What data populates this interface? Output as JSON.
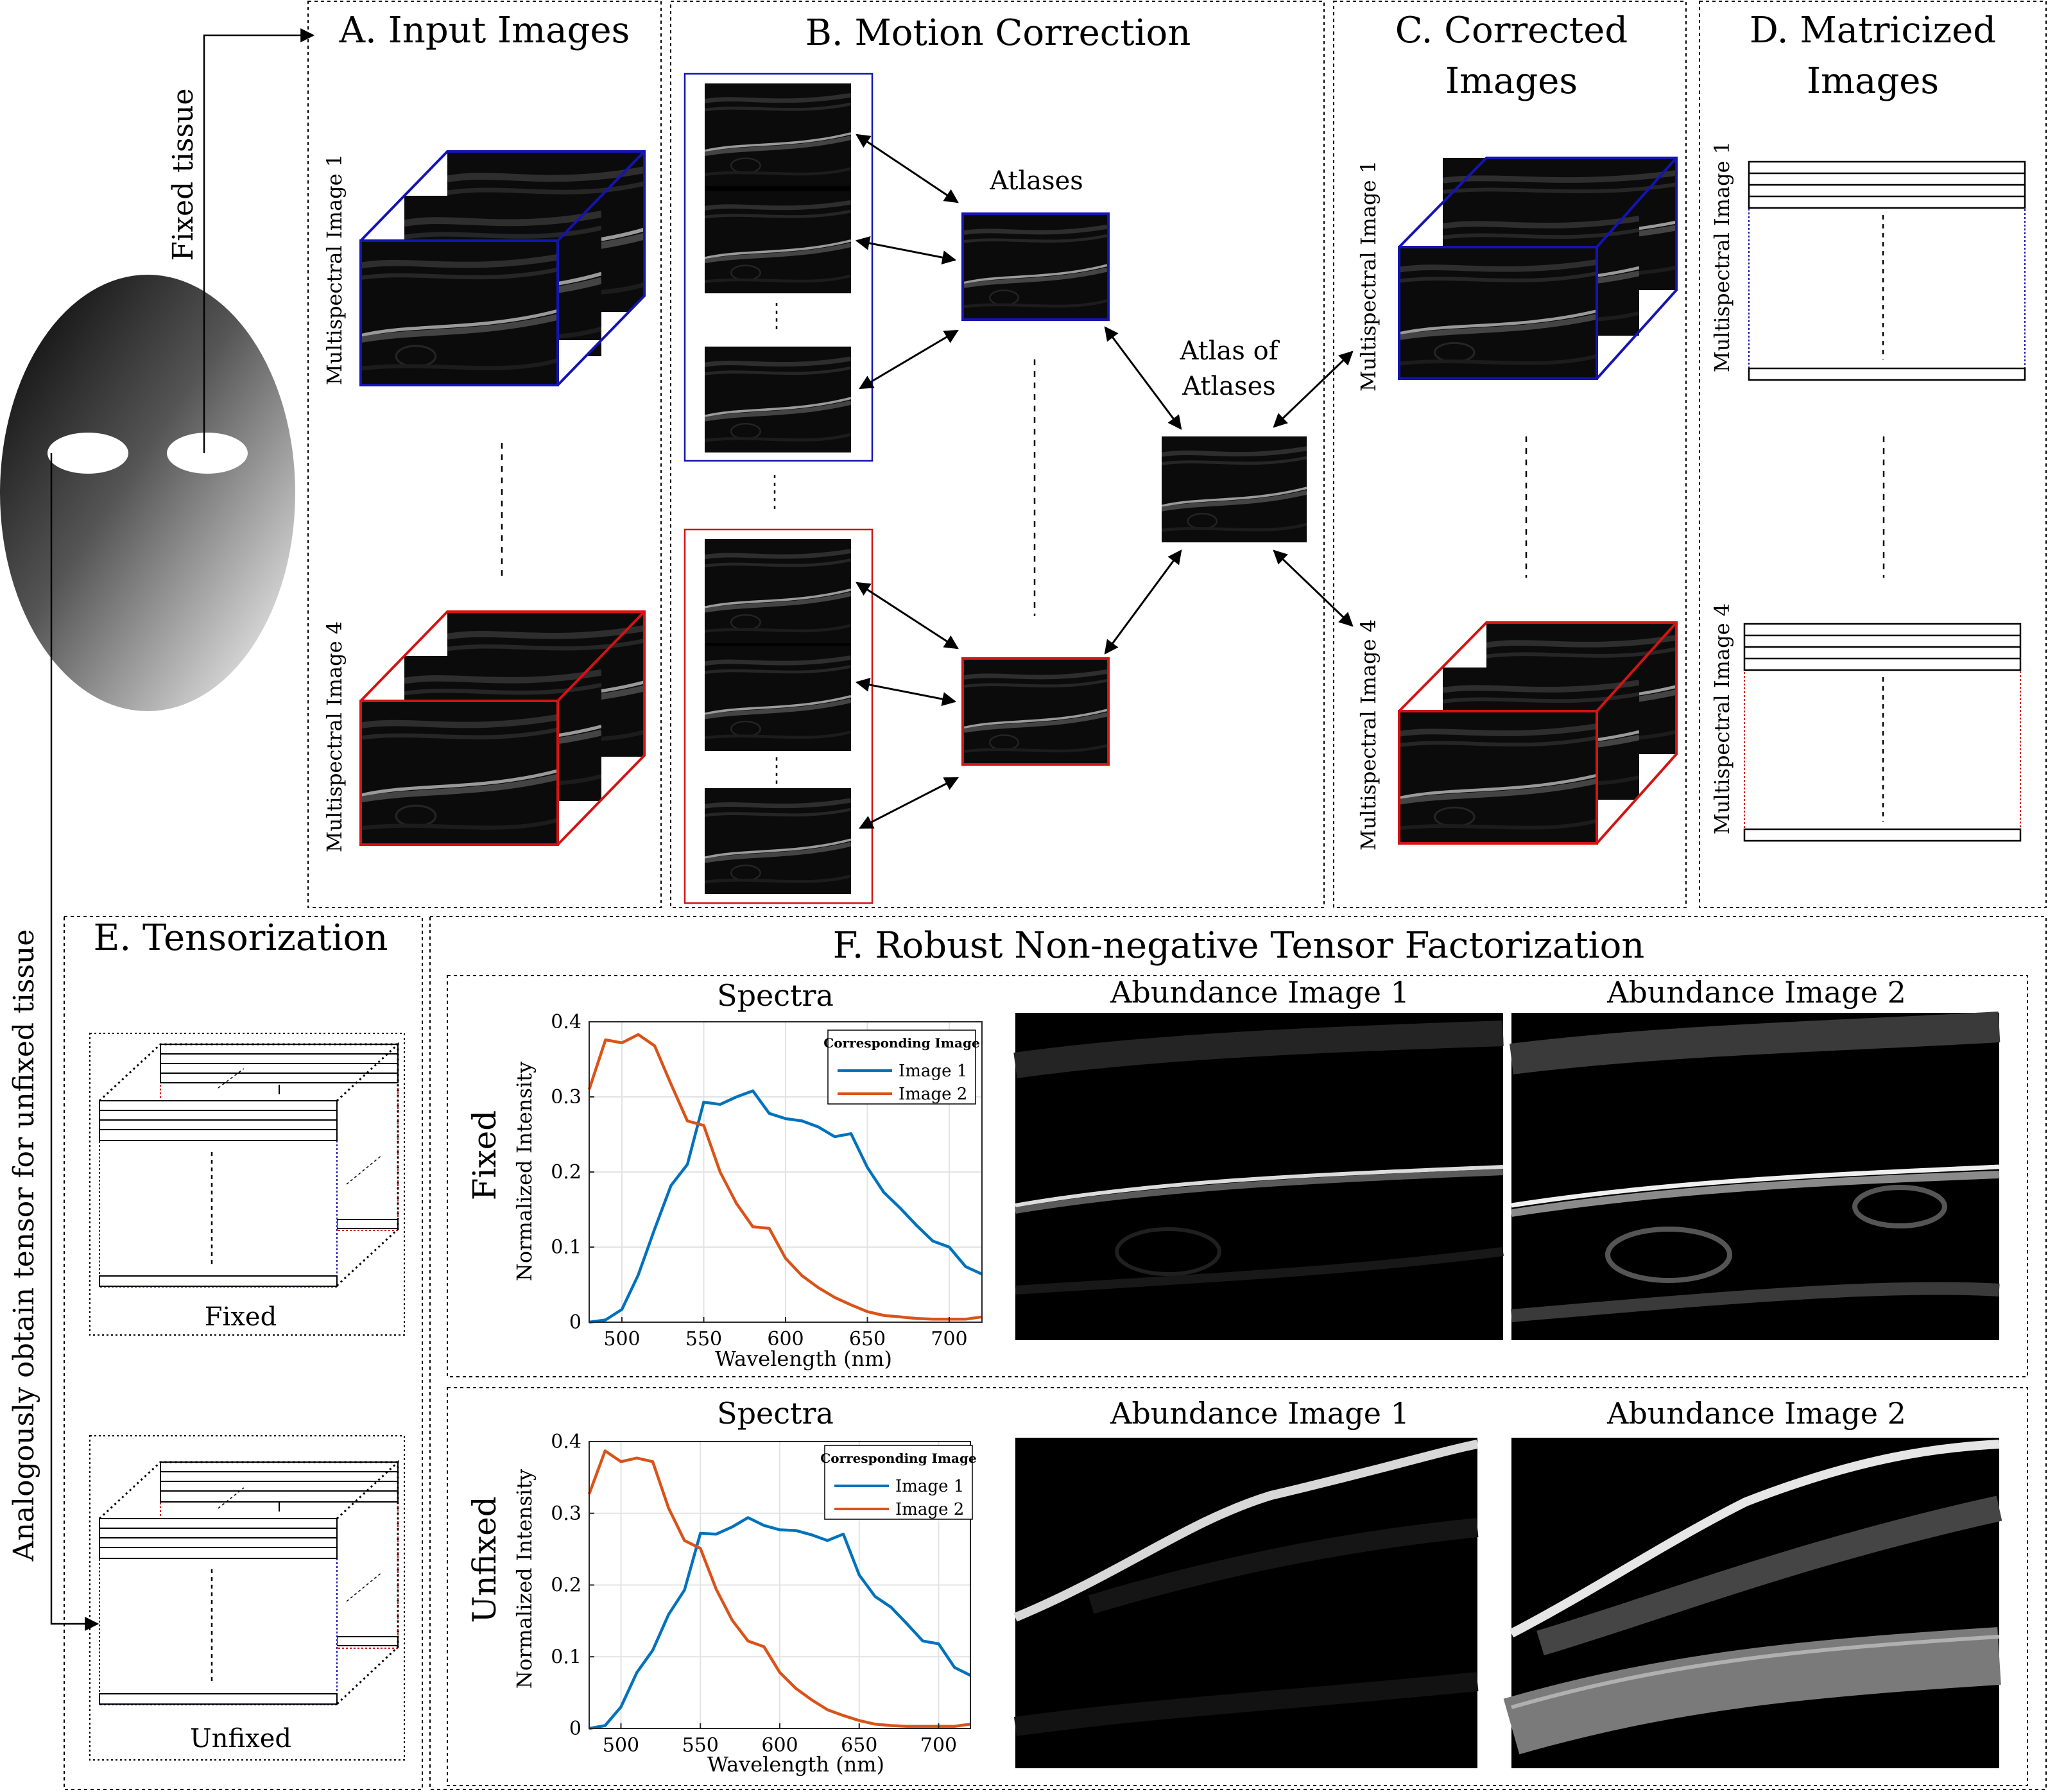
{
  "panels": {
    "a": "A. Input Images",
    "b": "B. Motion Correction",
    "c": "C. Corrected Images",
    "d": "D. Matricized Images",
    "e": "E. Tensorization",
    "f": "F. Robust Non-negative Tensor Factorization"
  },
  "labels": {
    "fixed_tissue": "Fixed tissue",
    "unfixed_tissue": "Analogously obtain tensor for unfixed tissue",
    "ms_image_1": "Multispectral Image 1",
    "ms_image_4": "Multispectral Image 4",
    "atlases": "Atlases",
    "atlas_of_atlases": "Atlas of Atlases",
    "fixed": "Fixed",
    "unfixed": "Unfixed"
  },
  "colors": {
    "image1_series": "#0072BD",
    "image2_series": "#D95319",
    "blue_frame": "#1414b4",
    "red_frame": "#d21414"
  },
  "chart_data": [
    {
      "type": "line",
      "title": "Spectra",
      "row_label": "Fixed",
      "xlabel": "Wavelength (nm)",
      "ylabel": "Normalized Intensity",
      "xlim": [
        480,
        720
      ],
      "ylim": [
        0,
        0.4
      ],
      "xticks": [
        500,
        550,
        600,
        650,
        700
      ],
      "yticks": [
        0,
        0.1,
        0.2,
        0.3,
        0.4
      ],
      "grid": true,
      "legend_title": "Corresponding Image",
      "legend_position": "top-right",
      "x": [
        480,
        490,
        500,
        510,
        520,
        530,
        540,
        550,
        560,
        570,
        580,
        590,
        600,
        610,
        620,
        630,
        640,
        650,
        660,
        670,
        680,
        690,
        700,
        710,
        720
      ],
      "series": [
        {
          "name": "Image 1",
          "color": "#0072BD",
          "values": [
            0.0,
            0.003,
            0.017,
            0.063,
            0.124,
            0.182,
            0.21,
            0.293,
            0.29,
            0.3,
            0.308,
            0.278,
            0.271,
            0.268,
            0.26,
            0.247,
            0.251,
            0.206,
            0.173,
            0.152,
            0.129,
            0.108,
            0.1,
            0.074,
            0.064
          ]
        },
        {
          "name": "Image 2",
          "color": "#D95319",
          "values": [
            0.31,
            0.376,
            0.372,
            0.383,
            0.368,
            0.317,
            0.268,
            0.262,
            0.2,
            0.158,
            0.127,
            0.125,
            0.085,
            0.062,
            0.046,
            0.033,
            0.023,
            0.014,
            0.009,
            0.007,
            0.005,
            0.004,
            0.004,
            0.004,
            0.007
          ]
        }
      ]
    },
    {
      "type": "line",
      "title": "Spectra",
      "row_label": "Unfixed",
      "xlabel": "Wavelength (nm)",
      "ylabel": "Normalized Intensity",
      "xlim": [
        480,
        720
      ],
      "ylim": [
        0,
        0.4
      ],
      "xticks": [
        500,
        550,
        600,
        650,
        700
      ],
      "yticks": [
        0,
        0.1,
        0.2,
        0.3,
        0.4
      ],
      "grid": true,
      "legend_title": "Corresponding Image",
      "legend_position": "top-right",
      "x": [
        480,
        490,
        500,
        510,
        520,
        530,
        540,
        550,
        560,
        570,
        580,
        590,
        600,
        610,
        620,
        630,
        640,
        650,
        660,
        670,
        680,
        690,
        700,
        710,
        720
      ],
      "series": [
        {
          "name": "Image 1",
          "color": "#0072BD",
          "values": [
            0.0,
            0.004,
            0.03,
            0.078,
            0.109,
            0.159,
            0.193,
            0.272,
            0.271,
            0.281,
            0.294,
            0.283,
            0.277,
            0.276,
            0.27,
            0.262,
            0.271,
            0.214,
            0.184,
            0.169,
            0.146,
            0.122,
            0.118,
            0.085,
            0.074
          ]
        },
        {
          "name": "Image 2",
          "color": "#D95319",
          "values": [
            0.327,
            0.387,
            0.372,
            0.377,
            0.372,
            0.307,
            0.262,
            0.251,
            0.194,
            0.151,
            0.122,
            0.114,
            0.078,
            0.056,
            0.04,
            0.026,
            0.018,
            0.011,
            0.006,
            0.004,
            0.003,
            0.003,
            0.003,
            0.003,
            0.006
          ]
        }
      ]
    }
  ],
  "abundance": {
    "image_1": "Abundance Image 1",
    "image_2": "Abundance Image 2"
  }
}
